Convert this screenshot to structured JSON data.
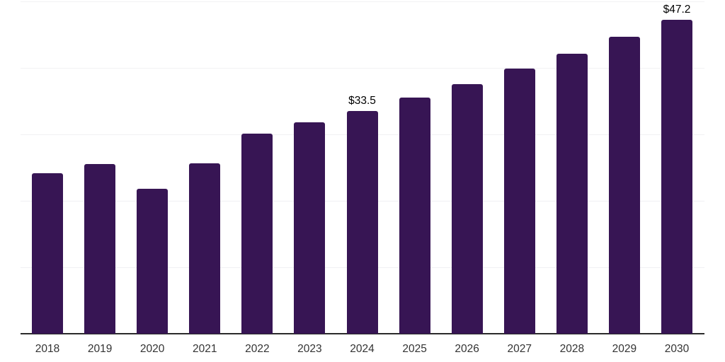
{
  "chart_data": {
    "type": "bar",
    "title": "",
    "xlabel": "",
    "ylabel": "",
    "categories": [
      "2018",
      "2019",
      "2020",
      "2021",
      "2022",
      "2023",
      "2024",
      "2025",
      "2026",
      "2027",
      "2028",
      "2029",
      "2030"
    ],
    "values": [
      24.2,
      25.5,
      21.8,
      25.6,
      30.1,
      31.8,
      33.5,
      35.5,
      37.6,
      39.9,
      42.1,
      44.7,
      47.2
    ],
    "data_labels": [
      {
        "category": "2024",
        "label": "$33.5"
      },
      {
        "category": "2030",
        "label": "$47.2"
      }
    ],
    "value_prefix": "$",
    "ylim": [
      0,
      50
    ],
    "grid": true,
    "gridline_step": 10,
    "y_axis_labels_visible": false,
    "legend": "none",
    "colors": {
      "bar_fill": "#371554",
      "gridline": "#f1f1f3",
      "axis_line": "#2b2b2b",
      "tick_label": "#333333",
      "data_label": "#000000",
      "background": "#ffffff"
    }
  }
}
